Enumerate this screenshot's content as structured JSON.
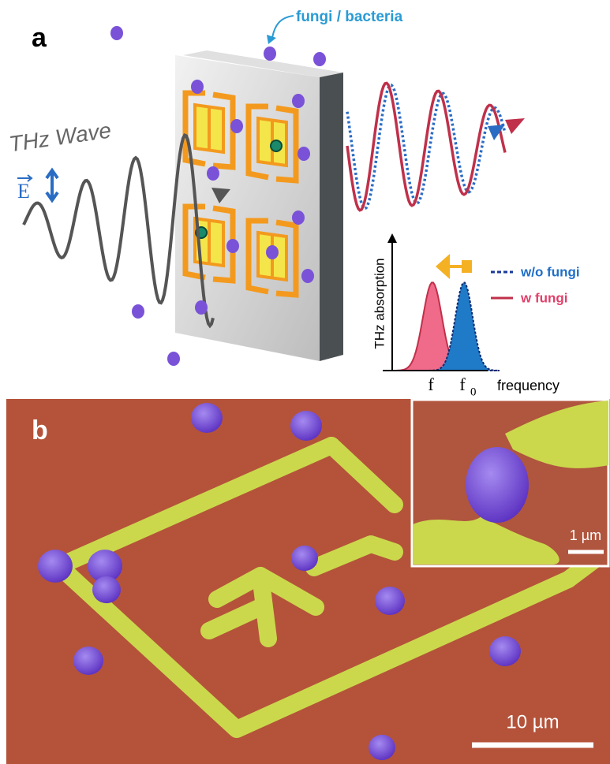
{
  "panel_a": {
    "label": "a",
    "annotation": "fungi / bacteria",
    "wave_label": "THz Wave",
    "field_label": "E",
    "graph": {
      "y_axis": "THz absorption",
      "x_axis": "frequency",
      "f_label": "f",
      "f0_label": "f",
      "f0_subscript": "0",
      "legend": [
        "w/o fungi",
        "w fungi"
      ]
    }
  },
  "panel_b": {
    "label": "b",
    "inset_scale": "1 µm",
    "scale": "10 µm"
  }
}
